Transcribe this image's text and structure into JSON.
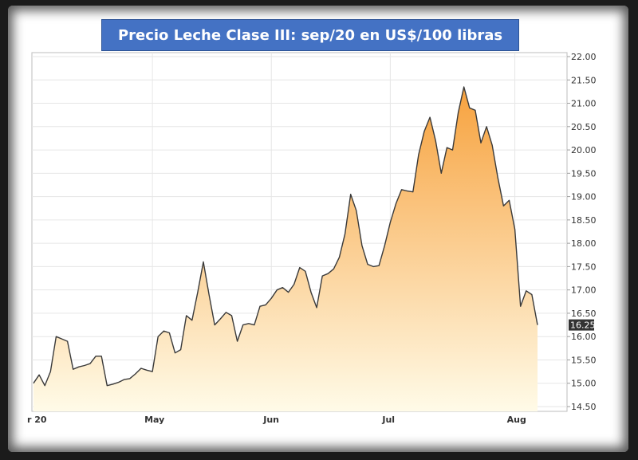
{
  "chart_data": {
    "type": "area",
    "title": "Precio Leche Clase III: sep/20 en US$/100 libras",
    "xlabel": "",
    "ylabel": "",
    "ylim": [
      14.5,
      22.0
    ],
    "yticks": [
      "22.00",
      "21.50",
      "21.00",
      "20.50",
      "20.00",
      "19.50",
      "19.00",
      "18.50",
      "18.00",
      "17.50",
      "17.00",
      "16.50",
      "16.00",
      "15.50",
      "15.00",
      "14.50"
    ],
    "month_labels": [
      {
        "label": "r 20",
        "index": 0
      },
      {
        "label": "May",
        "index": 21
      },
      {
        "label": "Jun",
        "index": 42
      },
      {
        "label": "Jul",
        "index": 63
      },
      {
        "label": "Aug",
        "index": 85
      }
    ],
    "last_value_label": "16.25",
    "grid": true,
    "colors": {
      "line": "#3a3a3a",
      "fill_top": "#f7a23e",
      "fill_bottom": "#fffbe8",
      "label_bg": "#333333"
    },
    "series": [
      {
        "values": [
          15.0,
          15.18,
          14.95,
          15.25,
          16.0,
          15.95,
          15.9,
          15.3,
          15.35,
          15.38,
          15.42,
          15.58,
          15.58,
          14.95,
          14.98,
          15.02,
          15.08,
          15.1,
          15.2,
          15.32,
          15.28,
          15.25,
          16.0,
          16.12,
          16.08,
          15.65,
          15.72,
          16.45,
          16.35,
          16.95,
          17.6,
          16.9,
          16.25,
          16.38,
          16.52,
          16.45,
          15.9,
          16.25,
          16.28,
          16.25,
          16.65,
          16.68,
          16.82,
          17.0,
          17.05,
          16.95,
          17.12,
          17.48,
          17.4,
          16.95,
          16.62,
          17.3,
          17.35,
          17.45,
          17.7,
          18.2,
          19.05,
          18.7,
          17.95,
          17.55,
          17.5,
          17.52,
          17.95,
          18.45,
          18.85,
          19.15,
          19.12,
          19.1,
          19.9,
          20.4,
          20.7,
          20.2,
          19.5,
          20.05,
          20.0,
          20.8,
          21.35,
          20.9,
          20.85,
          20.15,
          20.5,
          20.1,
          19.4,
          18.8,
          18.92,
          18.3,
          16.65,
          16.98,
          16.9,
          16.25
        ]
      }
    ]
  }
}
